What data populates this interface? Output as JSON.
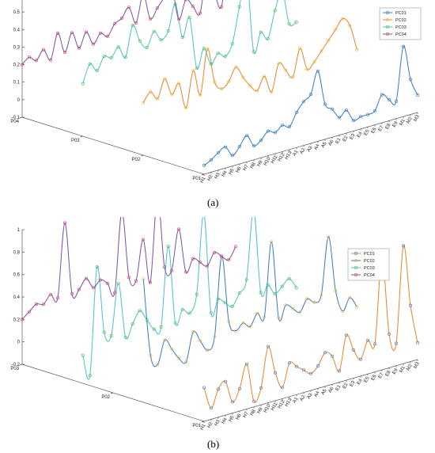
{
  "figure": {
    "panels": [
      {
        "label": "(a)"
      },
      {
        "label": "(b)"
      }
    ]
  },
  "chart_data": [
    {
      "panel": "(a)",
      "type": "line",
      "view": "3d",
      "x_categories": [
        "H1",
        "H2",
        "H3",
        "H4",
        "H5",
        "H6",
        "H7",
        "H8",
        "H9",
        "H10",
        "H11",
        "H12",
        "H13",
        "A1",
        "A2",
        "A3",
        "A4",
        "A5",
        "A6",
        "E1",
        "E2",
        "E3",
        "E4",
        "E5",
        "E6",
        "E7",
        "E8",
        "E9",
        "M1",
        "M2",
        "M3"
      ],
      "y_categories": [
        "PC01",
        "PC02",
        "PC03",
        "PC04"
      ],
      "ylim": [
        -0.1,
        0.6
      ],
      "z_ticks": [
        -0.1,
        0,
        0.1,
        0.2,
        0.3,
        0.4,
        0.5,
        0.6
      ],
      "z_tick_labels": [
        "-0.1",
        "0",
        "0.1",
        "0.2",
        "0.3",
        "0.4",
        "0.5",
        "0.6"
      ],
      "depth_tick_labels": [
        "P04",
        "P03",
        "P02",
        "P01"
      ],
      "legend": {
        "position": "top-right",
        "entries": [
          "PC01",
          "PC02",
          "PC03",
          "PC04"
        ]
      },
      "series": [
        {
          "name": "PC01",
          "color": "#3a78c2",
          "marker_color": "#3a78c2",
          "values": [
            -0.05,
            -0.03,
            0,
            0.02,
            -0.04,
            0,
            0.05,
            -0.02,
            0,
            0.04,
            0.02,
            0.05,
            0.03,
            0.1,
            0.15,
            0.18,
            0.3,
            0.1,
            0.06,
            0,
            0.03,
            -0.04,
            -0.03,
            -0.03,
            -0.02,
            0.06,
            0.02,
            0,
            0.3,
            0.1,
            0
          ]
        },
        {
          "name": "PC02",
          "color": "#e8832a",
          "marker_color": "#e8b93c",
          "values": [
            0.2,
            0.25,
            0.2,
            0.3,
            0.2,
            0.25,
            0.1,
            0.3,
            0.15,
            0.4,
            0.2,
            0.15,
            0.18,
            0.25,
            0.18,
            0.12,
            0.08,
            0.15,
            0.05,
            0.2,
            0.15,
            0.1,
            0.25,
            0.12,
            0.15,
            0.2,
            0.25,
            0.3,
            0.35,
            0.3,
            0.15
          ]
        },
        {
          "name": "PC03",
          "color": "#4dbfcf",
          "marker_color": "#3fbf3f",
          "values": [
            0.2,
            0.3,
            0.25,
            0.32,
            0.3,
            0.35,
            0.28,
            0.45,
            0.35,
            0.3,
            0.38,
            0.32,
            0.36,
            0.5,
            0.3,
            0.4,
            0.1,
            0.2,
            0.1,
            0.15,
            0.12,
            0.18,
            0.38,
            0.55,
            0.1,
            0.2,
            0.15,
            0.3,
            0.4,
            0.2,
            0.2
          ]
        },
        {
          "name": "PC04",
          "color": "#7a4fa8",
          "marker_color": "#d43f5f",
          "values": [
            0.2,
            0.23,
            0.2,
            0.25,
            0.18,
            0.32,
            0.2,
            0.3,
            0.2,
            0.28,
            0.2,
            0.25,
            0.22,
            0.28,
            0.3,
            0.35,
            0.25,
            0.4,
            0.25,
            0.3,
            0.35,
            0.4,
            0.2,
            0.3,
            0.25,
            0.2,
            0.45,
            0.3,
            0.2,
            0.5,
            0.25
          ]
        }
      ]
    },
    {
      "panel": "(b)",
      "type": "line",
      "view": "3d",
      "x_categories": [
        "H1",
        "H2",
        "H3",
        "H4",
        "H5",
        "H6",
        "H7",
        "H8",
        "H9",
        "H10",
        "H11",
        "H12",
        "H13",
        "A1",
        "A2",
        "A3",
        "A4",
        "A5",
        "A6",
        "E1",
        "E2",
        "E3",
        "E4",
        "E5",
        "E6",
        "E7",
        "E8",
        "E9",
        "M1",
        "M2",
        "M3"
      ],
      "y_categories": [
        "PC01",
        "PC02",
        "PC03",
        "PC04"
      ],
      "ylim": [
        -0.2,
        1.0
      ],
      "z_ticks": [
        -0.2,
        0,
        0.2,
        0.4,
        0.6,
        0.8,
        1.0
      ],
      "z_tick_labels": [
        "-0.2",
        "0",
        "0.2",
        "0.4",
        "0.6",
        "0.8",
        "1"
      ],
      "depth_tick_labels": [
        "P03",
        "P02",
        "P01"
      ],
      "legend": {
        "position": "top-right",
        "entries": [
          "PC01",
          "PC02",
          "PC03",
          "PC04"
        ]
      },
      "series": [
        {
          "name": "PC01",
          "color": "#e8832a",
          "marker_color": "#3a78c2",
          "values": [
            0.1,
            -0.1,
            0.05,
            0.1,
            -0.1,
            0,
            0.2,
            -0.15,
            -0.05,
            0.3,
            0.05,
            -0.1,
            0.1,
            0.05,
            0,
            -0.05,
            0,
            0.1,
            0.05,
            -0.1,
            0.2,
            0.05,
            -0.05,
            0.1,
            0.05,
            0.8,
            0.1,
            0,
            0.85,
            0.3,
            -0.05
          ]
        },
        {
          "name": "PC02",
          "color": "#3a78c2",
          "marker_color": "#e8b93c",
          "values": [
            0.9,
            0.2,
            0.1,
            0.3,
            0.2,
            0.1,
            0.05,
            0.3,
            0.2,
            0.1,
            0.2,
            0.9,
            0.3,
            0.2,
            0.25,
            0.2,
            0.3,
            0.25,
            0.9,
            0.2,
            0.3,
            0.25,
            0.2,
            0.3,
            0.25,
            0.3,
            0.8,
            0.3,
            0.1,
            0.2,
            0.1
          ]
        },
        {
          "name": "PC03",
          "color": "#4dbfcf",
          "marker_color": "#3fbf3f",
          "values": [
            0.05,
            -0.15,
            0.8,
            0.2,
            0.15,
            0.6,
            0.1,
            0.2,
            0.3,
            0.2,
            0.1,
            0.1,
            0.8,
            0.1,
            0.2,
            0.15,
            0.3,
            1.0,
            0.1,
            0.2,
            0.15,
            0.1,
            0.2,
            0.3,
            0.9,
            0.15,
            0.2,
            0.1,
            0.15,
            0.2,
            0.1
          ]
        },
        {
          "name": "PC04",
          "color": "#7a4fa8",
          "marker_color": "#d43f5f",
          "values": [
            0.2,
            0.25,
            0.3,
            0.28,
            0.35,
            0.3,
            0.95,
            0.3,
            0.32,
            0.4,
            0.3,
            0.35,
            0.3,
            0.2,
            0.9,
            0.3,
            0.25,
            0.6,
            0.2,
            0.95,
            0.3,
            0.25,
            0.6,
            0.2,
            0.3,
            0.25,
            0.2,
            0.3,
            0.25,
            0.2,
            0.3
          ]
        }
      ]
    }
  ]
}
